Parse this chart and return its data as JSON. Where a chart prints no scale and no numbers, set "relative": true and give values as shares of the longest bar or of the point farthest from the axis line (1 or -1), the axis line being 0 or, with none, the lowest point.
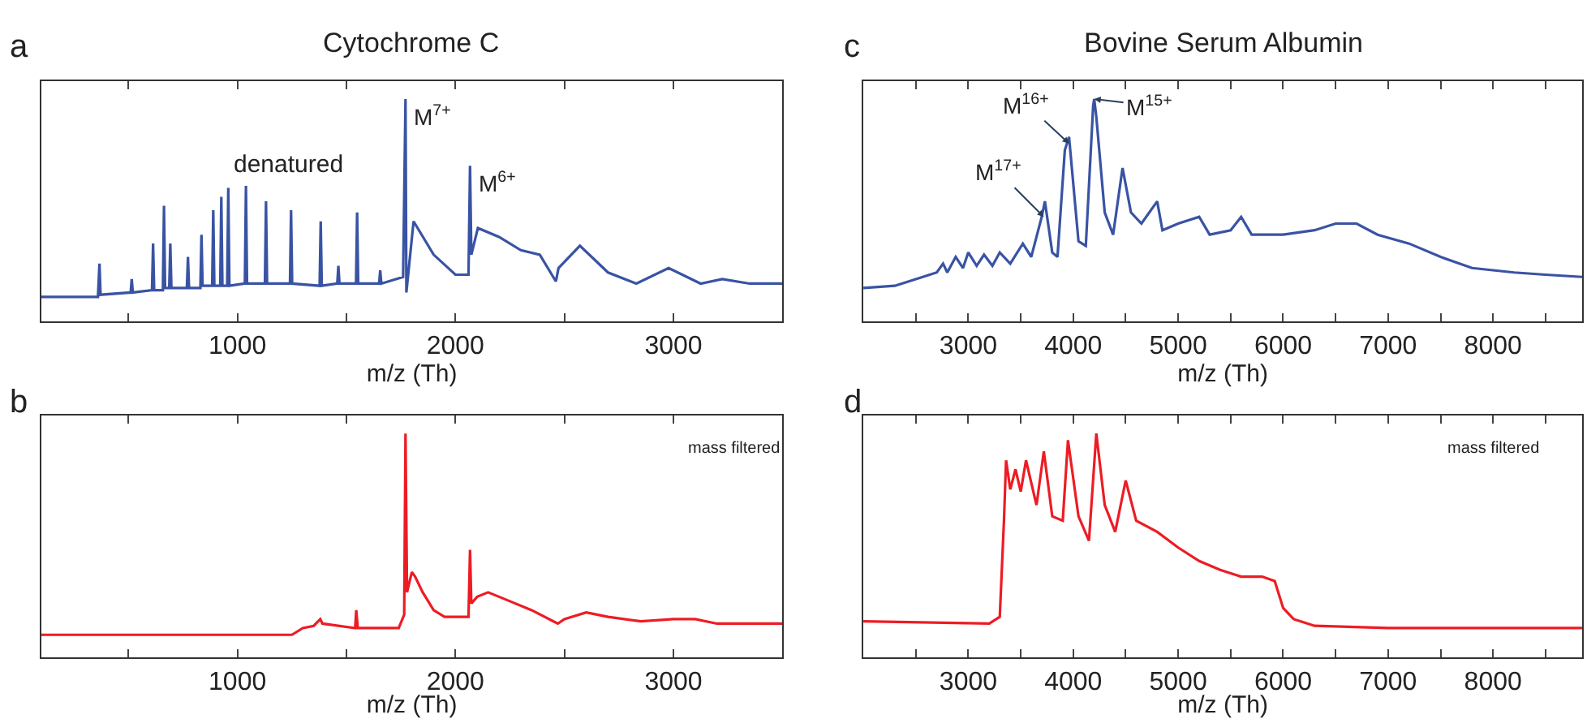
{
  "chart_data": [
    {
      "type": "line",
      "title": "Cytochrome C",
      "xlabel": "m/z (Th)",
      "relative": true,
      "tick_labels": "x",
      "xlim": [
        100,
        3500
      ],
      "xticks": [
        {
          "value": 500,
          "label": null
        },
        1000,
        {
          "value": 1500,
          "label": null
        },
        2000,
        {
          "value": 2500,
          "label": null
        },
        3000
      ],
      "x": [
        100,
        360,
        367,
        372,
        510,
        515,
        520,
        608,
        613,
        618,
        658,
        663,
        668,
        687,
        692,
        697,
        768,
        773,
        778,
        830,
        835,
        840,
        884,
        889,
        894,
        921,
        926,
        931,
        953,
        958,
        963,
        1034,
        1039,
        1044,
        1126,
        1131,
        1136,
        1241,
        1246,
        1251,
        1377,
        1382,
        1387,
        1458,
        1463,
        1468,
        1544,
        1549,
        1554,
        1650,
        1655,
        1660,
        1760,
        1771,
        1775,
        1808,
        1900,
        2000,
        2060,
        2067,
        2073,
        2103,
        2200,
        2300,
        2387,
        2461,
        2473,
        2571,
        2700,
        2830,
        2978,
        3125,
        3224,
        3350,
        3500
      ],
      "series": [
        {
          "color": "#3953a4",
          "values": [
            0.11,
            0.11,
            0.26,
            0.12,
            0.13,
            0.19,
            0.13,
            0.14,
            0.35,
            0.14,
            0.14,
            0.52,
            0.15,
            0.15,
            0.35,
            0.15,
            0.15,
            0.29,
            0.15,
            0.15,
            0.39,
            0.16,
            0.16,
            0.5,
            0.16,
            0.16,
            0.56,
            0.16,
            0.16,
            0.6,
            0.16,
            0.17,
            0.61,
            0.17,
            0.17,
            0.54,
            0.17,
            0.17,
            0.5,
            0.17,
            0.16,
            0.45,
            0.16,
            0.17,
            0.25,
            0.17,
            0.17,
            0.49,
            0.17,
            0.17,
            0.23,
            0.17,
            0.2,
            1,
            0.13,
            0.45,
            0.3,
            0.21,
            0.21,
            0.7,
            0.3,
            0.42,
            0.38,
            0.32,
            0.3,
            0.18,
            0.24,
            0.34,
            0.22,
            0.17,
            0.24,
            0.17,
            0.19,
            0.17,
            0.17
          ]
        }
      ],
      "annotations": [
        "a",
        "denatured",
        {
          "text": "M$^{7+}$",
          "x": 1771,
          "y": 1
        },
        {
          "text": "M$^{6+}$",
          "x": 2067,
          "y": 0.7
        }
      ]
    },
    {
      "type": "line",
      "title": "Bovine Serum Albumin",
      "xlabel": "m/z (Th)",
      "relative": true,
      "tick_labels": "x",
      "xlim": [
        2000,
        8850
      ],
      "xticks": [
        {
          "value": 2500,
          "label": null
        },
        3000,
        {
          "value": 3500,
          "label": null
        },
        4000,
        {
          "value": 4500,
          "label": null
        },
        5000,
        {
          "value": 5500,
          "label": null
        },
        6000,
        {
          "value": 6500,
          "label": null
        },
        7000,
        {
          "value": 7500,
          "label": null
        },
        8000,
        {
          "value": 8500,
          "label": null
        }
      ],
      "x": [
        2000,
        2300,
        2500,
        2700,
        2760,
        2800,
        2880,
        2950,
        3000,
        3080,
        3150,
        3230,
        3300,
        3400,
        3520,
        3600,
        3700,
        3730,
        3800,
        3850,
        3920,
        3960,
        4050,
        4120,
        4190,
        4200,
        4220,
        4300,
        4380,
        4470,
        4550,
        4650,
        4800,
        4850,
        5000,
        5200,
        5300,
        5500,
        5600,
        5700,
        6000,
        6300,
        6500,
        6700,
        6900,
        7200,
        7500,
        7800,
        8200,
        8500,
        8850
      ],
      "series": [
        {
          "color": "#3953a4",
          "values": [
            0.15,
            0.16,
            0.19,
            0.22,
            0.26,
            0.22,
            0.29,
            0.24,
            0.31,
            0.25,
            0.3,
            0.25,
            0.31,
            0.26,
            0.35,
            0.29,
            0.47,
            0.54,
            0.31,
            0.29,
            0.77,
            0.83,
            0.36,
            0.34,
            0.97,
            1,
            0.92,
            0.49,
            0.39,
            0.69,
            0.49,
            0.44,
            0.54,
            0.41,
            0.44,
            0.47,
            0.39,
            0.41,
            0.47,
            0.39,
            0.39,
            0.41,
            0.44,
            0.44,
            0.39,
            0.35,
            0.29,
            0.24,
            0.22,
            0.21,
            0.2
          ]
        }
      ],
      "annotations": [
        "c",
        {
          "text": "M$^{17+}$",
          "x": 3720,
          "y": 0.47
        },
        {
          "text": "M$^{16+}$",
          "x": 3960,
          "y": 0.8
        },
        {
          "text": "M$^{15+}$",
          "x": 4200,
          "y": 1
        }
      ]
    },
    {
      "type": "line",
      "xlabel": "m/z (Th)",
      "relative": true,
      "tick_labels": "x",
      "xlim": [
        100,
        3500
      ],
      "xticks": [
        {
          "value": 500,
          "label": null
        },
        1000,
        {
          "value": 1500,
          "label": null
        },
        2000,
        {
          "value": 2500,
          "label": null
        },
        3000
      ],
      "x": [
        100,
        1250,
        1300,
        1350,
        1380,
        1390,
        1540,
        1545,
        1552,
        1740,
        1765,
        1771,
        1778,
        1800,
        1815,
        1850,
        1900,
        1950,
        2060,
        2067,
        2073,
        2100,
        2150,
        2250,
        2350,
        2450,
        2470,
        2500,
        2600,
        2700,
        2850,
        3000,
        3100,
        3200,
        3500
      ],
      "series": [
        {
          "color": "#ed1c24",
          "values": [
            0.1,
            0.1,
            0.13,
            0.14,
            0.17,
            0.15,
            0.13,
            0.21,
            0.13,
            0.13,
            0.19,
            1,
            0.29,
            0.38,
            0.36,
            0.29,
            0.21,
            0.18,
            0.18,
            0.48,
            0.24,
            0.27,
            0.29,
            0.25,
            0.21,
            0.16,
            0.15,
            0.17,
            0.2,
            0.18,
            0.16,
            0.17,
            0.17,
            0.15,
            0.15
          ]
        }
      ],
      "annotations": [
        "b",
        "mass filtered"
      ]
    },
    {
      "type": "line",
      "xlabel": "m/z (Th)",
      "relative": true,
      "tick_labels": "x",
      "xlim": [
        2000,
        8850
      ],
      "xticks": [
        {
          "value": 2500,
          "label": null
        },
        3000,
        {
          "value": 3500,
          "label": null
        },
        4000,
        {
          "value": 4500,
          "label": null
        },
        5000,
        {
          "value": 5500,
          "label": null
        },
        6000,
        {
          "value": 6500,
          "label": null
        },
        7000,
        {
          "value": 7500,
          "label": null
        },
        8000,
        {
          "value": 8500,
          "label": null
        }
      ],
      "x": [
        2000,
        3200,
        3300,
        3340,
        3360,
        3400,
        3450,
        3500,
        3550,
        3650,
        3720,
        3800,
        3900,
        3950,
        4050,
        4150,
        4220,
        4300,
        4400,
        4500,
        4600,
        4800,
        5000,
        5200,
        5400,
        5600,
        5800,
        5920,
        6000,
        6100,
        6300,
        7000,
        8850
      ],
      "series": [
        {
          "color": "#ed1c24",
          "values": [
            0.16,
            0.15,
            0.18,
            0.61,
            0.88,
            0.75,
            0.84,
            0.74,
            0.88,
            0.68,
            0.92,
            0.63,
            0.61,
            0.97,
            0.63,
            0.52,
            1,
            0.68,
            0.56,
            0.79,
            0.61,
            0.56,
            0.49,
            0.43,
            0.39,
            0.36,
            0.36,
            0.34,
            0.22,
            0.17,
            0.14,
            0.13,
            0.13
          ]
        }
      ],
      "annotations": [
        "d",
        "mass filtered"
      ]
    }
  ]
}
